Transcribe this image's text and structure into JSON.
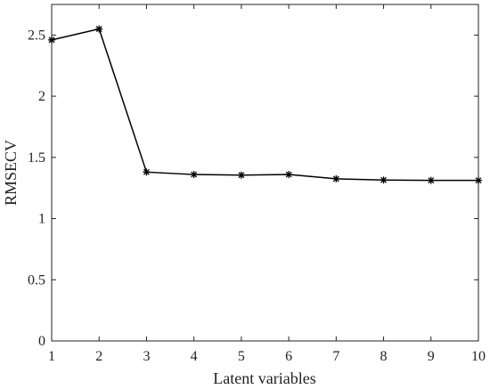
{
  "chart_data": {
    "type": "line",
    "title": "",
    "xlabel": "Latent variables",
    "ylabel": "RMSECV",
    "x": [
      1,
      2,
      3,
      4,
      5,
      6,
      7,
      8,
      9,
      10
    ],
    "series": [
      {
        "values": [
          2.46,
          2.55,
          1.38,
          1.36,
          1.355,
          1.36,
          1.325,
          1.315,
          1.312,
          1.312
        ]
      }
    ],
    "xlim": [
      1,
      10
    ],
    "ylim": [
      0,
      2.75
    ],
    "xticks": [
      "1",
      "2",
      "3",
      "4",
      "5",
      "6",
      "7",
      "8",
      "9",
      "10"
    ],
    "yticks": [
      "0",
      "0.5",
      "1",
      "1.5",
      "2",
      "2.5"
    ],
    "grid": false,
    "marker": "asterisk",
    "line_color": "#000000"
  }
}
